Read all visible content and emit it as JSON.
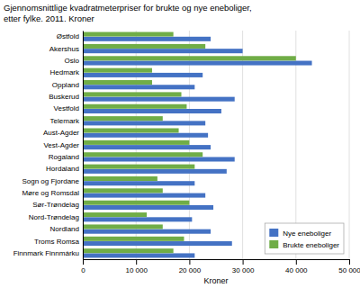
{
  "chart_data": {
    "type": "bar",
    "orientation": "horizontal",
    "title": "Gjennomsnittlige kvadratmeterpriser for brukte og nye eneboliger,",
    "subtitle": "etter fylke. 2011. Kroner",
    "categories": [
      "Østfold",
      "Akershus",
      "Oslo",
      "Hedmark",
      "Oppland",
      "Buskerud",
      "Vestfold",
      "Telemark",
      "Aust-Agder",
      "Vest-Agder",
      "Rogaland",
      "Hordaland",
      "Sogn og Fjordane",
      "Møre og Romsdal",
      "Sør-Trøndelag",
      "Nord-Trøndelag",
      "Nordland",
      "Troms Romsa",
      "Finnmark Finnmárku"
    ],
    "series": [
      {
        "name": "Nye eneboliger",
        "color": "#4472c4",
        "values": [
          24000,
          30000,
          43000,
          22500,
          21000,
          28500,
          26000,
          23000,
          23500,
          24000,
          28500,
          27000,
          21000,
          23000,
          24500,
          20500,
          24000,
          28000,
          21000
        ]
      },
      {
        "name": "Brukte eneboliger",
        "color": "#70ad47",
        "values": [
          17000,
          23000,
          40000,
          13000,
          13000,
          18500,
          19500,
          15000,
          18000,
          20000,
          22500,
          21000,
          14000,
          15000,
          20000,
          12000,
          15000,
          19000,
          17000
        ]
      }
    ],
    "xlim": [
      0,
      50000
    ],
    "xticks": [
      0,
      {
        "value": 10000,
        "label": "10 000"
      },
      {
        "value": 20000,
        "label": "20 000"
      },
      {
        "value": 30000,
        "label": "30 000"
      },
      {
        "value": 40000,
        "label": "40 000"
      },
      {
        "value": 50000,
        "label": "50 000"
      }
    ],
    "xlabel": "Kroner",
    "grid": true,
    "legend": "lower right"
  }
}
